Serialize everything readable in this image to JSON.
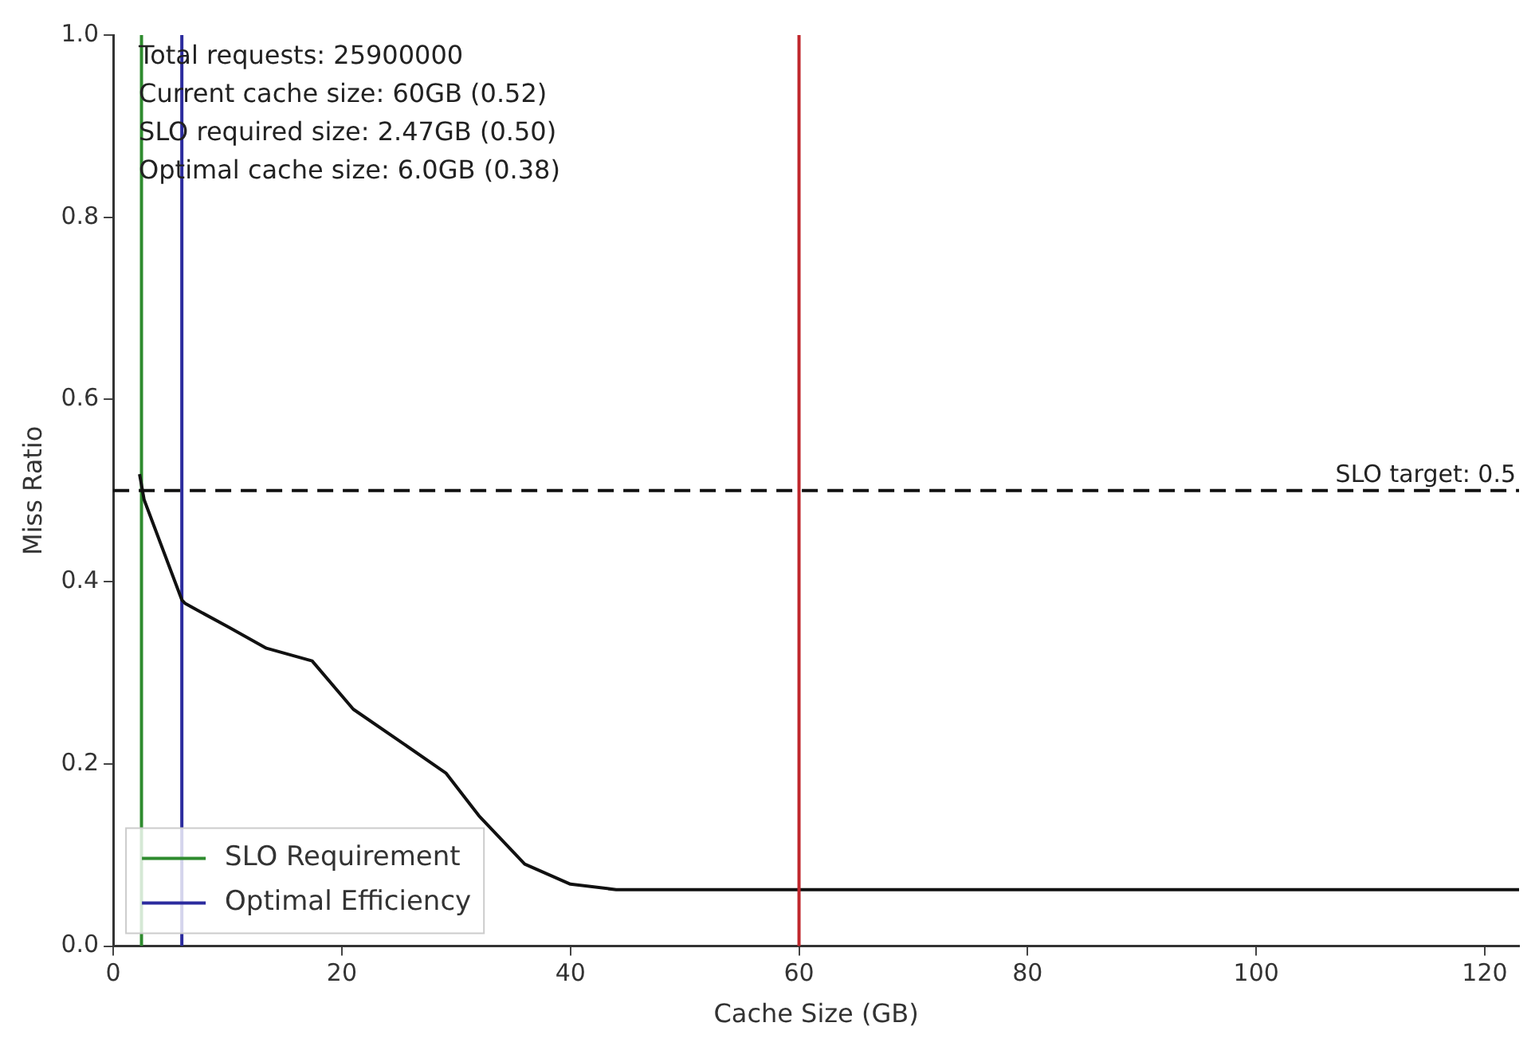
{
  "chart_data": {
    "type": "line",
    "xlabel": "Cache Size (GB)",
    "ylabel": "Miss Ratio",
    "xlim": [
      0,
      123
    ],
    "xticks": [
      0,
      20,
      40,
      60,
      80,
      100,
      120
    ],
    "ylim": [
      0,
      1
    ],
    "yticks": [
      {
        "value": 0,
        "label": "0.0"
      },
      {
        "value": 0.2,
        "label": "0.2"
      },
      {
        "value": 0.4,
        "label": "0.4"
      },
      {
        "value": 0.6,
        "label": "0.6"
      },
      {
        "value": 0.8,
        "label": "0.8"
      },
      {
        "value": 1,
        "label": "1.0"
      }
    ],
    "grid": false,
    "legend": "bottom left",
    "marker": "none",
    "line_style": "solid",
    "series": [
      {
        "color": "#111111",
        "x": [
          2.3,
          2.7,
          6.0,
          6.3,
          10.1,
          13.4,
          17.4,
          21,
          25.3,
          29.1,
          32,
          36,
          40,
          44,
          123
        ],
        "values": [
          0.518,
          0.49,
          0.38,
          0.376,
          0.35,
          0.327,
          0.313,
          0.26,
          0.223,
          0.19,
          0.143,
          0.09,
          0.068,
          0.062,
          0.062
        ]
      },
      {
        "name": "SLO Requirement",
        "color": "#2e8b2e",
        "x": [
          2.47,
          2.47
        ],
        "values": [
          0,
          1
        ]
      },
      {
        "name": "Optimal Efficiency",
        "color": "#2b2b9e",
        "x": [
          6.0,
          6.0
        ],
        "values": [
          0,
          1
        ]
      }
    ],
    "ref_lines": [
      {
        "axis": "x",
        "value": 60,
        "color": "#c0282d"
      },
      {
        "axis": "y",
        "value": 0.5,
        "label": "SLO target: 0.5",
        "color": "#111111",
        "line_style": "dashed"
      }
    ],
    "annotations": [
      "Total requests: 25900000",
      "Current cache size: 60GB (0.52)",
      "SLO required size: 2.47GB (0.50)",
      "Optimal cache size: 6.0GB (0.38)"
    ]
  }
}
